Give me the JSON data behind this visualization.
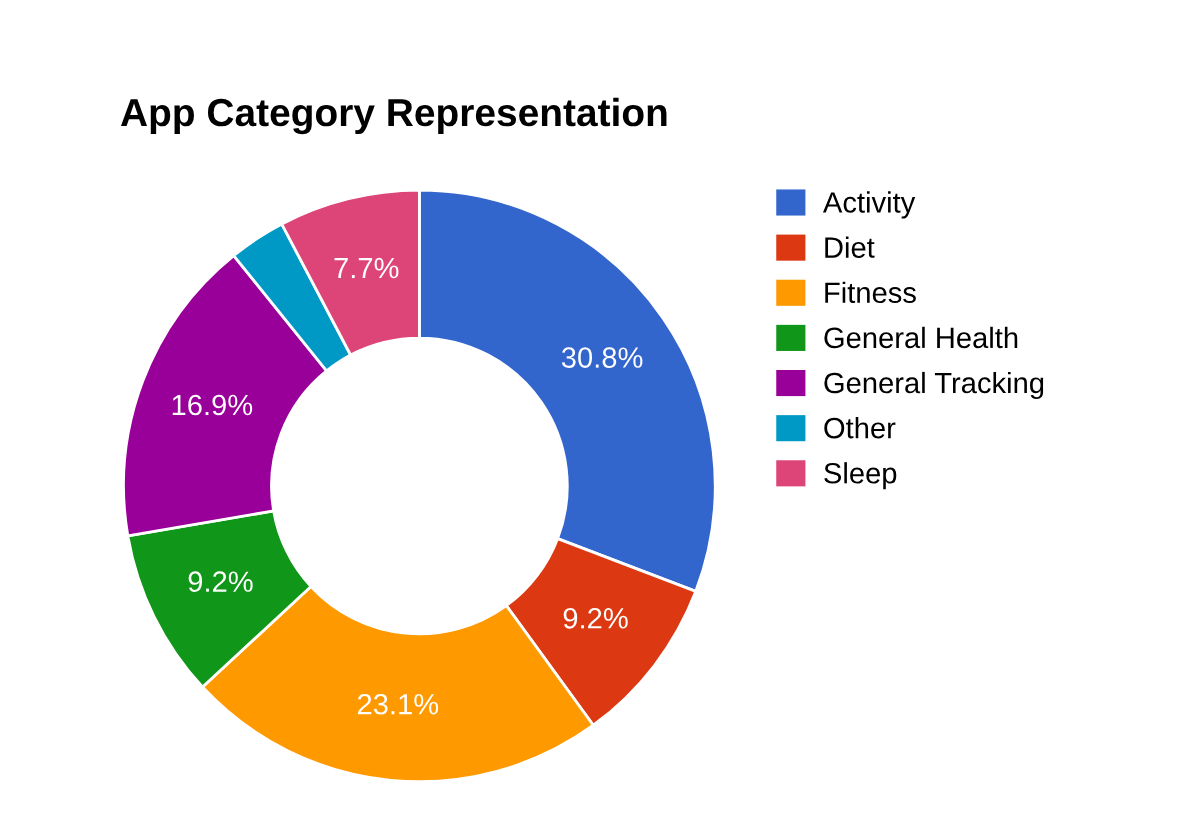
{
  "chart_data": {
    "type": "donut",
    "title": "App Category Representation",
    "categories": [
      "Activity",
      "Diet",
      "Fitness",
      "General Health",
      "General Tracking",
      "Other",
      "Sleep"
    ],
    "values": [
      30.8,
      9.2,
      23.1,
      9.2,
      16.9,
      3.1,
      7.7
    ],
    "value_labels": [
      "30.8%",
      "9.2%",
      "23.1%",
      "9.2%",
      "16.9%",
      null,
      "7.7%"
    ],
    "colors": [
      "#3366cc",
      "#dc3912",
      "#ff9900",
      "#109618",
      "#990099",
      "#0099c6",
      "#dd4477"
    ],
    "legend": "right"
  }
}
